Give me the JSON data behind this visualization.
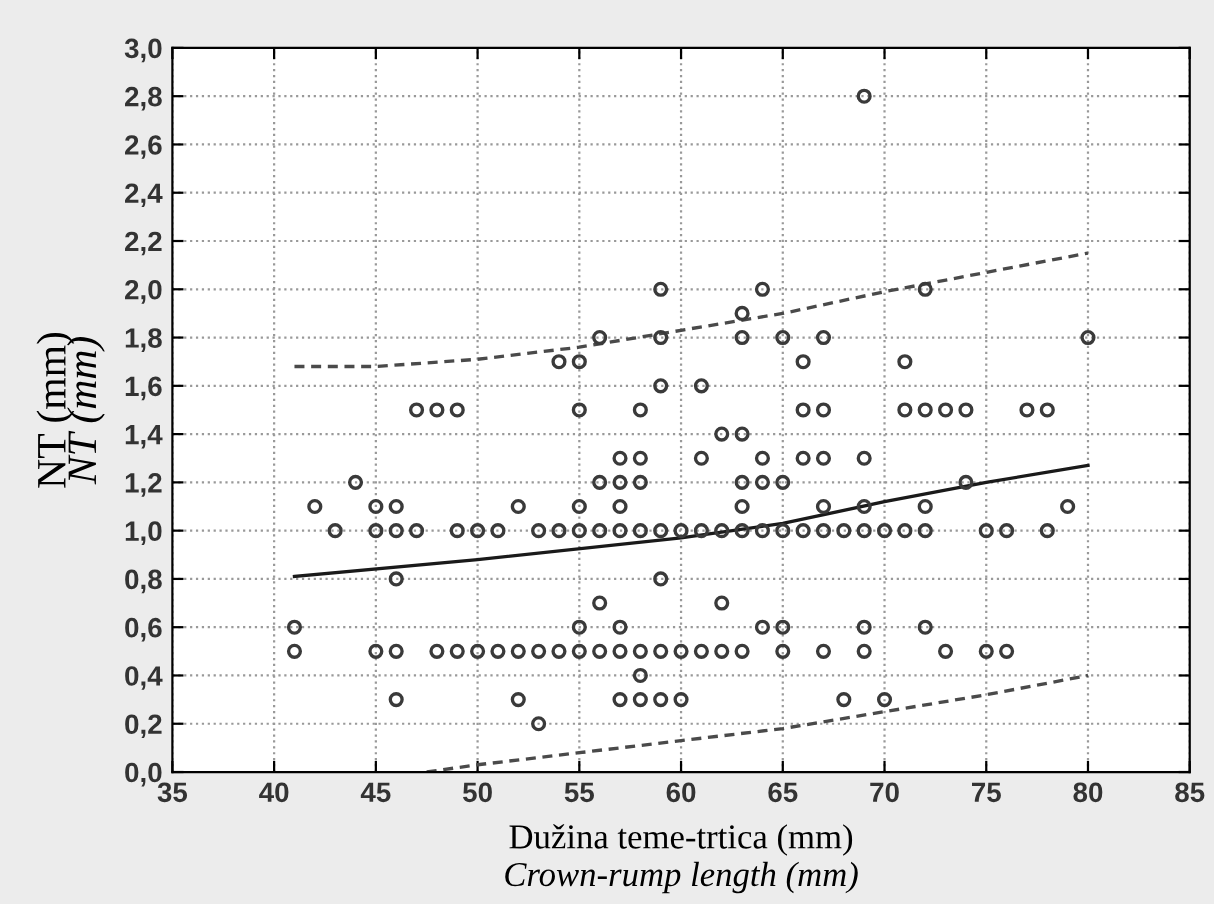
{
  "chart_data": {
    "type": "scatter",
    "xlabel": "Dužina teme-trtica (mm)\nCrown-rump length (mm)",
    "ylabel": "NT (mm)\nNT (mm)",
    "xlim": [
      35,
      85
    ],
    "xticks": [
      35,
      40,
      45,
      50,
      55,
      60,
      65,
      70,
      75,
      80,
      85
    ],
    "ylim": [
      0,
      3
    ],
    "yticks": [
      {
        "value": 0,
        "label": "0,0"
      },
      {
        "value": 0.2,
        "label": "0,2"
      },
      {
        "value": 0.4,
        "label": "0,4"
      },
      {
        "value": 0.6,
        "label": "0,6"
      },
      {
        "value": 0.8,
        "label": "0,8"
      },
      {
        "value": 1.0,
        "label": "1,0"
      },
      {
        "value": 1.2,
        "label": "1,2"
      },
      {
        "value": 1.4,
        "label": "1,4"
      },
      {
        "value": 1.6,
        "label": "1,6"
      },
      {
        "value": 1.8,
        "label": "1,8"
      },
      {
        "value": 2.0,
        "label": "2,0"
      },
      {
        "value": 2.2,
        "label": "2,2"
      },
      {
        "value": 2.4,
        "label": "2,4"
      },
      {
        "value": 2.6,
        "label": "2,6"
      },
      {
        "value": 2.8,
        "label": "2,8"
      },
      {
        "value": 3.0,
        "label": "3,0"
      }
    ],
    "grid": true,
    "series": [
      {
        "marker": "circle",
        "color": "#3a3a3a",
        "x": [
          41,
          41,
          42,
          43,
          44,
          45,
          45,
          45,
          46,
          46,
          46,
          46,
          46,
          47,
          47,
          48,
          48,
          49,
          49,
          49,
          50,
          50,
          51,
          51,
          52,
          52,
          52,
          53,
          53,
          53,
          54,
          54,
          54,
          55,
          55,
          55,
          55,
          55,
          55,
          56,
          56,
          56,
          56,
          56,
          57,
          57,
          57,
          57,
          57,
          57,
          57,
          58,
          58,
          58,
          58,
          58,
          58,
          58,
          59,
          59,
          59,
          59,
          59,
          59,
          59,
          60,
          60,
          60,
          61,
          61,
          61,
          61,
          62,
          62,
          62,
          62,
          63,
          63,
          63,
          63,
          63,
          63,
          63,
          64,
          64,
          64,
          64,
          64,
          65,
          65,
          65,
          65,
          65,
          66,
          66,
          66,
          66,
          67,
          67,
          67,
          67,
          67,
          67,
          68,
          68,
          69,
          69,
          69,
          69,
          69,
          69,
          70,
          70,
          71,
          71,
          71,
          72,
          72,
          72,
          72,
          72,
          73,
          73,
          74,
          74,
          75,
          75,
          76,
          76,
          77,
          78,
          78,
          79,
          80
        ],
        "values": [
          0.6,
          0.5,
          1.1,
          1.0,
          1.2,
          1.1,
          1.0,
          0.5,
          1.1,
          1.0,
          0.8,
          0.5,
          0.3,
          1.5,
          1.0,
          1.5,
          0.5,
          1.5,
          1.0,
          0.5,
          1.0,
          0.5,
          1.0,
          0.5,
          1.1,
          0.5,
          0.3,
          1.0,
          0.5,
          0.2,
          1.7,
          1.0,
          0.5,
          1.7,
          1.5,
          1.1,
          1.0,
          0.6,
          0.5,
          1.8,
          1.2,
          1.0,
          0.7,
          0.5,
          1.3,
          1.2,
          1.1,
          1.0,
          0.6,
          0.5,
          0.3,
          1.5,
          1.3,
          1.2,
          1.0,
          0.5,
          0.4,
          0.3,
          2.0,
          1.8,
          1.6,
          1.0,
          0.8,
          0.5,
          0.3,
          1.0,
          0.5,
          0.3,
          1.6,
          1.3,
          1.0,
          0.5,
          1.4,
          1.0,
          0.7,
          0.5,
          1.9,
          1.8,
          1.4,
          1.2,
          1.1,
          1.0,
          0.5,
          2.0,
          1.3,
          1.2,
          1.0,
          0.6,
          1.8,
          1.2,
          1.0,
          0.6,
          0.5,
          1.7,
          1.5,
          1.3,
          1.0,
          1.8,
          1.5,
          1.3,
          1.1,
          1.0,
          0.5,
          1.0,
          0.3,
          2.8,
          1.3,
          1.1,
          1.0,
          0.6,
          0.5,
          1.0,
          0.3,
          1.7,
          1.5,
          1.0,
          2.0,
          1.5,
          1.1,
          1.0,
          0.6,
          1.5,
          0.5,
          1.5,
          1.2,
          1.0,
          0.5,
          1.0,
          0.5,
          1.5,
          1.5,
          1.0,
          1.1,
          1.8
        ]
      },
      {
        "type": "line",
        "color": "#1a1a1a",
        "line_style": "solid",
        "x": [
          41,
          50,
          60,
          65,
          70,
          75,
          80
        ],
        "values": [
          0.81,
          0.88,
          0.97,
          1.03,
          1.12,
          1.2,
          1.27
        ]
      },
      {
        "type": "line",
        "color": "#4a4a4a",
        "line_style": "dashed",
        "x": [
          41,
          45,
          50,
          55,
          60,
          65,
          70,
          75,
          80
        ],
        "values": [
          1.68,
          1.68,
          1.71,
          1.76,
          1.83,
          1.9,
          1.99,
          2.07,
          2.15
        ]
      },
      {
        "type": "line",
        "color": "#4a4a4a",
        "line_style": "dashed",
        "x": [
          47.5,
          50,
          55,
          60,
          65,
          70,
          75,
          80
        ],
        "values": [
          0.0,
          0.03,
          0.08,
          0.13,
          0.18,
          0.25,
          0.32,
          0.4
        ]
      }
    ]
  }
}
